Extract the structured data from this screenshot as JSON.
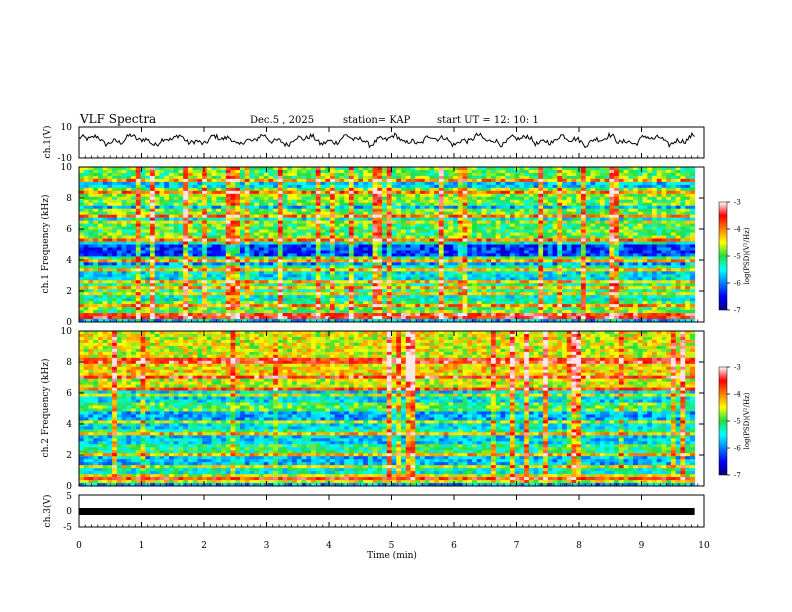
{
  "header": {
    "title": "VLF Spectra",
    "date": "Dec.5 , 2025",
    "station": "station= KAP",
    "start": "start UT = 12: 10: 1"
  },
  "chart_data": [
    {
      "type": "line",
      "name": "ch1-waveform",
      "ylabel": "ch.1(V)",
      "ylim": [
        -10,
        10
      ],
      "yticks": [
        "10",
        "-10"
      ],
      "xlim": [
        0,
        10
      ],
      "note": "noisy waveform varying roughly between -3 and 6 V over 0 to 9.85 min"
    },
    {
      "type": "heatmap",
      "name": "ch1-spectrogram",
      "ylabel": "ch.1 Frequency (kHz)",
      "ylim": [
        0,
        10
      ],
      "yticks": [
        "0",
        "2",
        "4",
        "6",
        "8",
        "10"
      ],
      "xlim": [
        0,
        10
      ],
      "data_xmax": 9.85,
      "colorbar": {
        "label": "log(PSD)(V²/Hz)",
        "ticks": [
          "-3",
          "-4",
          "-5",
          "-6",
          "-7"
        ],
        "range": [
          -7,
          -3
        ]
      },
      "bands": [
        {
          "from": 0.0,
          "to": 0.2,
          "level": 0.3
        },
        {
          "from": 0.2,
          "to": 0.6,
          "level": 0.65
        },
        {
          "from": 0.6,
          "to": 1.4,
          "level": 0.52
        },
        {
          "from": 1.4,
          "to": 2.0,
          "level": 0.4
        },
        {
          "from": 2.0,
          "to": 2.6,
          "level": 0.47
        },
        {
          "from": 2.6,
          "to": 3.2,
          "level": 0.36
        },
        {
          "from": 3.2,
          "to": 3.6,
          "level": 0.44
        },
        {
          "from": 3.6,
          "to": 3.9,
          "level": 0.26
        },
        {
          "from": 3.9,
          "to": 4.3,
          "level": 0.48
        },
        {
          "from": 4.3,
          "to": 5.1,
          "level": 0.18
        },
        {
          "from": 5.1,
          "to": 5.5,
          "level": 0.56
        },
        {
          "from": 5.5,
          "to": 6.3,
          "level": 0.5
        },
        {
          "from": 6.3,
          "to": 6.7,
          "level": 0.38
        },
        {
          "from": 6.7,
          "to": 7.4,
          "level": 0.52
        },
        {
          "from": 7.4,
          "to": 7.8,
          "level": 0.3
        },
        {
          "from": 7.8,
          "to": 8.6,
          "level": 0.55
        },
        {
          "from": 8.6,
          "to": 9.0,
          "level": 0.33
        },
        {
          "from": 9.0,
          "to": 10.0,
          "level": 0.52
        }
      ],
      "tones_khz": [
        0.4,
        1.0,
        1.8,
        2.2,
        2.6,
        3.3,
        4.0,
        5.2,
        6.4,
        6.8,
        7.7,
        8.4,
        9.2
      ]
    },
    {
      "type": "heatmap",
      "name": "ch2-spectrogram",
      "ylabel": "ch.2 Frequency (kHz)",
      "ylim": [
        0,
        10
      ],
      "yticks": [
        "0",
        "2",
        "4",
        "6",
        "8",
        "10"
      ],
      "xlim": [
        0,
        10
      ],
      "data_xmax": 9.85,
      "colorbar": {
        "label": "log(PSD)(V²/Hz)",
        "ticks": [
          "-3",
          "-4",
          "-5",
          "-6",
          "-7"
        ],
        "range": [
          -7,
          -3
        ]
      },
      "bands": [
        {
          "from": 0.0,
          "to": 0.2,
          "level": 0.3
        },
        {
          "from": 0.2,
          "to": 0.8,
          "level": 0.62
        },
        {
          "from": 0.8,
          "to": 1.4,
          "level": 0.4
        },
        {
          "from": 1.4,
          "to": 2.0,
          "level": 0.32
        },
        {
          "from": 2.0,
          "to": 2.6,
          "level": 0.46
        },
        {
          "from": 2.6,
          "to": 3.2,
          "level": 0.34
        },
        {
          "from": 3.2,
          "to": 3.7,
          "level": 0.46
        },
        {
          "from": 3.7,
          "to": 4.3,
          "level": 0.36
        },
        {
          "from": 4.3,
          "to": 4.8,
          "level": 0.3
        },
        {
          "from": 4.8,
          "to": 5.4,
          "level": 0.5
        },
        {
          "from": 5.4,
          "to": 6.1,
          "level": 0.36
        },
        {
          "from": 6.1,
          "to": 7.0,
          "level": 0.6
        },
        {
          "from": 7.0,
          "to": 8.0,
          "level": 0.66
        },
        {
          "from": 8.0,
          "to": 10.0,
          "level": 0.62
        }
      ],
      "tones_khz": [
        0.5,
        1.2,
        2.0,
        3.3,
        4.1,
        5.8,
        6.2,
        7.0,
        8.1
      ]
    },
    {
      "type": "line",
      "name": "ch3-waveform",
      "ylabel": "ch.3(V)",
      "ylim": [
        -5,
        5
      ],
      "yticks": [
        "5",
        "0",
        "-5"
      ],
      "xlim": [
        0,
        10
      ],
      "x": [
        0,
        9.85
      ],
      "y": [
        0,
        0
      ],
      "note": "thick flat trace near 0 V"
    }
  ],
  "time_axis": {
    "label": "Time (min)",
    "ticks": [
      "0",
      "1",
      "2",
      "3",
      "4",
      "5",
      "6",
      "7",
      "8",
      "9",
      "10"
    ]
  }
}
